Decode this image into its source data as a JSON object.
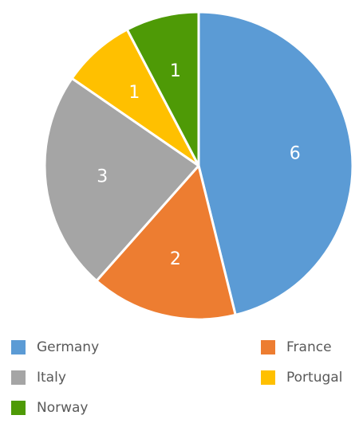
{
  "chart_data": {
    "type": "pie",
    "categories": [
      "Germany",
      "France",
      "Italy",
      "Portugal",
      "Norway"
    ],
    "values": [
      6,
      2,
      3,
      1,
      1
    ],
    "colors": [
      "#5b9bd5",
      "#ed7d31",
      "#a5a5a5",
      "#ffc000",
      "#4e9a06"
    ],
    "legend": "bottom"
  }
}
